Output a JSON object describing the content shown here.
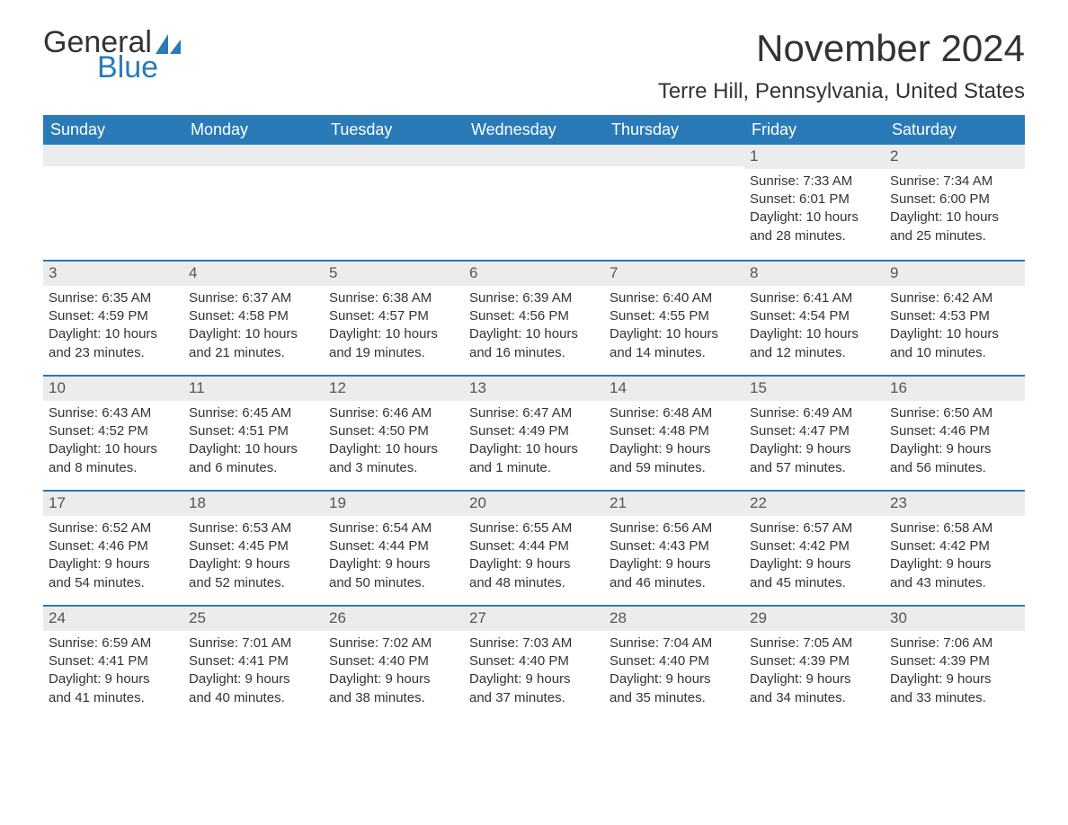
{
  "logo": {
    "text1": "General",
    "text2": "Blue",
    "icon_color": "#2a7ab8"
  },
  "title": "November 2024",
  "location": "Terre Hill, Pennsylvania, United States",
  "colors": {
    "header_bg": "#2a7ab8",
    "header_text": "#ffffff",
    "rule": "#2a7ab8",
    "daynum_bg": "#ececec",
    "body_text": "#333333"
  },
  "typography": {
    "title_fontsize": 42,
    "location_fontsize": 24,
    "header_fontsize": 18,
    "cell_fontsize": 15
  },
  "day_headers": [
    "Sunday",
    "Monday",
    "Tuesday",
    "Wednesday",
    "Thursday",
    "Friday",
    "Saturday"
  ],
  "weeks": [
    [
      null,
      null,
      null,
      null,
      null,
      {
        "n": "1",
        "sunrise": "7:33 AM",
        "sunset": "6:01 PM",
        "dl1": "Daylight: 10 hours",
        "dl2": "and 28 minutes."
      },
      {
        "n": "2",
        "sunrise": "7:34 AM",
        "sunset": "6:00 PM",
        "dl1": "Daylight: 10 hours",
        "dl2": "and 25 minutes."
      }
    ],
    [
      {
        "n": "3",
        "sunrise": "6:35 AM",
        "sunset": "4:59 PM",
        "dl1": "Daylight: 10 hours",
        "dl2": "and 23 minutes."
      },
      {
        "n": "4",
        "sunrise": "6:37 AM",
        "sunset": "4:58 PM",
        "dl1": "Daylight: 10 hours",
        "dl2": "and 21 minutes."
      },
      {
        "n": "5",
        "sunrise": "6:38 AM",
        "sunset": "4:57 PM",
        "dl1": "Daylight: 10 hours",
        "dl2": "and 19 minutes."
      },
      {
        "n": "6",
        "sunrise": "6:39 AM",
        "sunset": "4:56 PM",
        "dl1": "Daylight: 10 hours",
        "dl2": "and 16 minutes."
      },
      {
        "n": "7",
        "sunrise": "6:40 AM",
        "sunset": "4:55 PM",
        "dl1": "Daylight: 10 hours",
        "dl2": "and 14 minutes."
      },
      {
        "n": "8",
        "sunrise": "6:41 AM",
        "sunset": "4:54 PM",
        "dl1": "Daylight: 10 hours",
        "dl2": "and 12 minutes."
      },
      {
        "n": "9",
        "sunrise": "6:42 AM",
        "sunset": "4:53 PM",
        "dl1": "Daylight: 10 hours",
        "dl2": "and 10 minutes."
      }
    ],
    [
      {
        "n": "10",
        "sunrise": "6:43 AM",
        "sunset": "4:52 PM",
        "dl1": "Daylight: 10 hours",
        "dl2": "and 8 minutes."
      },
      {
        "n": "11",
        "sunrise": "6:45 AM",
        "sunset": "4:51 PM",
        "dl1": "Daylight: 10 hours",
        "dl2": "and 6 minutes."
      },
      {
        "n": "12",
        "sunrise": "6:46 AM",
        "sunset": "4:50 PM",
        "dl1": "Daylight: 10 hours",
        "dl2": "and 3 minutes."
      },
      {
        "n": "13",
        "sunrise": "6:47 AM",
        "sunset": "4:49 PM",
        "dl1": "Daylight: 10 hours",
        "dl2": "and 1 minute."
      },
      {
        "n": "14",
        "sunrise": "6:48 AM",
        "sunset": "4:48 PM",
        "dl1": "Daylight: 9 hours",
        "dl2": "and 59 minutes."
      },
      {
        "n": "15",
        "sunrise": "6:49 AM",
        "sunset": "4:47 PM",
        "dl1": "Daylight: 9 hours",
        "dl2": "and 57 minutes."
      },
      {
        "n": "16",
        "sunrise": "6:50 AM",
        "sunset": "4:46 PM",
        "dl1": "Daylight: 9 hours",
        "dl2": "and 56 minutes."
      }
    ],
    [
      {
        "n": "17",
        "sunrise": "6:52 AM",
        "sunset": "4:46 PM",
        "dl1": "Daylight: 9 hours",
        "dl2": "and 54 minutes."
      },
      {
        "n": "18",
        "sunrise": "6:53 AM",
        "sunset": "4:45 PM",
        "dl1": "Daylight: 9 hours",
        "dl2": "and 52 minutes."
      },
      {
        "n": "19",
        "sunrise": "6:54 AM",
        "sunset": "4:44 PM",
        "dl1": "Daylight: 9 hours",
        "dl2": "and 50 minutes."
      },
      {
        "n": "20",
        "sunrise": "6:55 AM",
        "sunset": "4:44 PM",
        "dl1": "Daylight: 9 hours",
        "dl2": "and 48 minutes."
      },
      {
        "n": "21",
        "sunrise": "6:56 AM",
        "sunset": "4:43 PM",
        "dl1": "Daylight: 9 hours",
        "dl2": "and 46 minutes."
      },
      {
        "n": "22",
        "sunrise": "6:57 AM",
        "sunset": "4:42 PM",
        "dl1": "Daylight: 9 hours",
        "dl2": "and 45 minutes."
      },
      {
        "n": "23",
        "sunrise": "6:58 AM",
        "sunset": "4:42 PM",
        "dl1": "Daylight: 9 hours",
        "dl2": "and 43 minutes."
      }
    ],
    [
      {
        "n": "24",
        "sunrise": "6:59 AM",
        "sunset": "4:41 PM",
        "dl1": "Daylight: 9 hours",
        "dl2": "and 41 minutes."
      },
      {
        "n": "25",
        "sunrise": "7:01 AM",
        "sunset": "4:41 PM",
        "dl1": "Daylight: 9 hours",
        "dl2": "and 40 minutes."
      },
      {
        "n": "26",
        "sunrise": "7:02 AM",
        "sunset": "4:40 PM",
        "dl1": "Daylight: 9 hours",
        "dl2": "and 38 minutes."
      },
      {
        "n": "27",
        "sunrise": "7:03 AM",
        "sunset": "4:40 PM",
        "dl1": "Daylight: 9 hours",
        "dl2": "and 37 minutes."
      },
      {
        "n": "28",
        "sunrise": "7:04 AM",
        "sunset": "4:40 PM",
        "dl1": "Daylight: 9 hours",
        "dl2": "and 35 minutes."
      },
      {
        "n": "29",
        "sunrise": "7:05 AM",
        "sunset": "4:39 PM",
        "dl1": "Daylight: 9 hours",
        "dl2": "and 34 minutes."
      },
      {
        "n": "30",
        "sunrise": "7:06 AM",
        "sunset": "4:39 PM",
        "dl1": "Daylight: 9 hours",
        "dl2": "and 33 minutes."
      }
    ]
  ],
  "labels": {
    "sunrise_prefix": "Sunrise: ",
    "sunset_prefix": "Sunset: "
  }
}
